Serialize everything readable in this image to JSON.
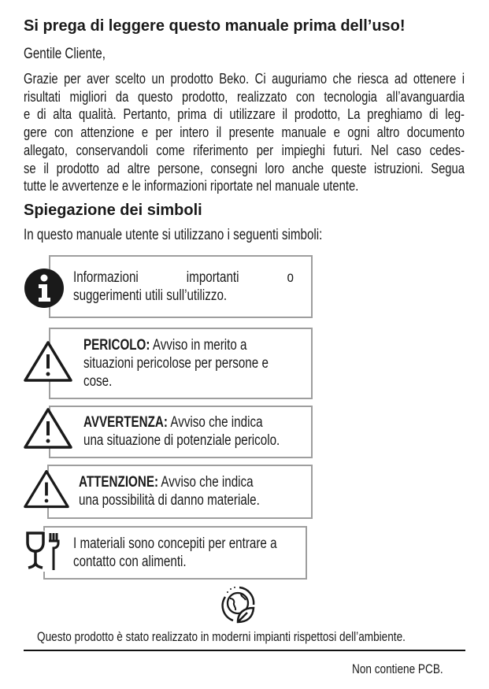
{
  "title": "Si prega di leggere questo manuale prima dell’uso!",
  "greeting": "Gentile Cliente,",
  "intro_lines": [
    "Grazie per aver scelto un prodotto Beko. Ci auguriamo che riesca ad ottenere i",
    "risultati migliori da questo prodotto, realizzato con tecnologia all’avanguardia",
    "e di alta qualità. Pertanto, prima di utilizzare il prodotto, La preghiamo di leg-",
    "gere con attenzione e per intero il presente manuale e ogni altro documento",
    "allegato, conservandoli come riferimento per impieghi futuri. Nel caso cedes-",
    "se il prodotto ad altre persone, consegni loro anche queste istruzioni. Segua",
    "tutte le avvertenze e le informazioni riportate nel manuale utente."
  ],
  "symbols_heading": "Spiegazione dei simboli",
  "symbols_intro": "In questo manuale utente si utilizzano i seguenti simboli:",
  "symbols": [
    {
      "icon": "info-icon",
      "lines": [
        "Informazioni importanti o",
        "suggerimenti utili sull’utilizzo."
      ]
    },
    {
      "icon": "warning-triangle-icon",
      "label": "PERICOLO:",
      "lines": [
        " Avviso in merito a",
        "situazioni pericolose per persone e",
        "cose."
      ]
    },
    {
      "icon": "warning-triangle-icon",
      "label": "AVVERTENZA:",
      "lines": [
        " Avviso che indica",
        "una situazione di potenziale pericolo."
      ]
    },
    {
      "icon": "warning-triangle-icon",
      "label": "ATTENZIONE:",
      "lines": [
        " Avviso che indica",
        "una possibilità di danno materiale."
      ]
    },
    {
      "icon": "food-contact-icon",
      "lines": [
        "I materiali sono concepiti per entrare a",
        "contatto con alimenti."
      ]
    }
  ],
  "eco_icon": "eco-globe-leaf-icon",
  "eco_text": "Questo prodotto è stato realizzato in moderni impianti rispettosi dell’ambiente.",
  "pcb_text": "Non contiene PCB."
}
